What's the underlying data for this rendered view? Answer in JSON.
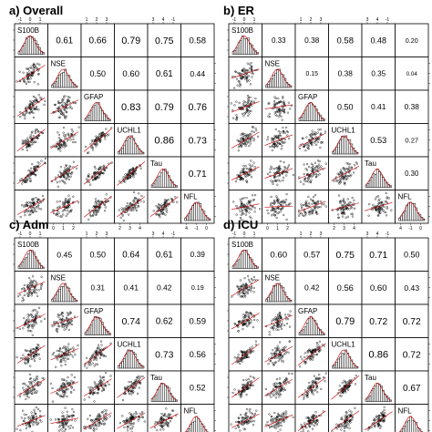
{
  "chart_data": [
    {
      "type": "scatter_matrix",
      "title": "a) Overall",
      "variables": [
        "S100B",
        "NSE",
        "GFAP",
        "UCHL1",
        "Tau",
        "NFL"
      ],
      "correlations": [
        [
          null,
          0.61,
          0.66,
          0.79,
          0.75,
          0.58
        ],
        [
          null,
          null,
          0.5,
          0.6,
          0.61,
          0.44
        ],
        [
          null,
          null,
          null,
          0.83,
          0.79,
          0.76
        ],
        [
          null,
          null,
          null,
          null,
          0.86,
          0.73
        ],
        [
          null,
          null,
          null,
          null,
          null,
          0.71
        ],
        [
          null,
          null,
          null,
          null,
          null,
          null
        ]
      ],
      "labels": [
        [
          null,
          "0.61",
          "0.66",
          "0.79",
          "0.75",
          "0.58"
        ],
        [
          null,
          null,
          "0.50",
          "0.60",
          "0.61",
          "0.44"
        ],
        [
          null,
          null,
          null,
          "0.83",
          "0.79",
          "0.76"
        ],
        [
          null,
          null,
          null,
          null,
          "0.86",
          "0.73"
        ],
        [
          null,
          null,
          null,
          null,
          null,
          "0.71"
        ],
        [
          null,
          null,
          null,
          null,
          null,
          null
        ]
      ]
    },
    {
      "type": "scatter_matrix",
      "title": "b) ER",
      "variables": [
        "S100B",
        "NSE",
        "GFAP",
        "UCHL1",
        "Tau",
        "NFL"
      ],
      "correlations": [
        [
          null,
          0.33,
          0.38,
          0.58,
          0.48,
          0.2
        ],
        [
          null,
          null,
          0.15,
          0.38,
          0.35,
          0.04
        ],
        [
          null,
          null,
          null,
          0.5,
          0.41,
          0.38
        ],
        [
          null,
          null,
          null,
          null,
          0.53,
          0.27
        ],
        [
          null,
          null,
          null,
          null,
          null,
          0.3
        ],
        [
          null,
          null,
          null,
          null,
          null,
          null
        ]
      ],
      "labels": [
        [
          null,
          "0.33",
          "0.38",
          "0.58",
          "0.48",
          "0.20"
        ],
        [
          null,
          null,
          "0.15",
          "0.38",
          "0.35",
          "0.04"
        ],
        [
          null,
          null,
          null,
          "0.50",
          "0.41",
          "0.38"
        ],
        [
          null,
          null,
          null,
          null,
          "0.53",
          "0.27"
        ],
        [
          null,
          null,
          null,
          null,
          null,
          "0.30"
        ],
        [
          null,
          null,
          null,
          null,
          null,
          null
        ]
      ]
    },
    {
      "type": "scatter_matrix",
      "title": "c) Adm",
      "variables": [
        "S100B",
        "NSE",
        "GFAP",
        "UCHL1",
        "Tau",
        "NFL"
      ],
      "correlations": [
        [
          null,
          0.45,
          0.5,
          0.64,
          0.61,
          0.39
        ],
        [
          null,
          null,
          0.31,
          0.41,
          0.42,
          0.19
        ],
        [
          null,
          null,
          null,
          0.74,
          0.62,
          0.59
        ],
        [
          null,
          null,
          null,
          null,
          0.73,
          0.56
        ],
        [
          null,
          null,
          null,
          null,
          null,
          0.52
        ],
        [
          null,
          null,
          null,
          null,
          null,
          null
        ]
      ],
      "labels": [
        [
          null,
          "0.45",
          "0.50",
          "0.64",
          "0.61",
          "0.39"
        ],
        [
          null,
          null,
          "0.31",
          "0.41",
          "0.42",
          "0.19"
        ],
        [
          null,
          null,
          null,
          "0.74",
          "0.62",
          "0.59"
        ],
        [
          null,
          null,
          null,
          null,
          "0.73",
          "0.56"
        ],
        [
          null,
          null,
          null,
          null,
          null,
          "0.52"
        ],
        [
          null,
          null,
          null,
          null,
          null,
          null
        ]
      ]
    },
    {
      "type": "scatter_matrix",
      "title": "d) ICU",
      "variables": [
        "S100B",
        "NSE",
        "GFAP",
        "UCHL1",
        "Tau",
        "NFL"
      ],
      "correlations": [
        [
          null,
          0.6,
          0.57,
          0.75,
          0.71,
          0.5
        ],
        [
          null,
          null,
          0.42,
          0.56,
          0.6,
          0.43
        ],
        [
          null,
          null,
          null,
          0.79,
          0.72,
          0.72
        ],
        [
          null,
          null,
          null,
          null,
          0.86,
          0.72
        ],
        [
          null,
          null,
          null,
          null,
          null,
          0.67
        ],
        [
          null,
          null,
          null,
          null,
          null,
          null
        ]
      ],
      "labels": [
        [
          null,
          "0.60",
          "0.57",
          "0.75",
          "0.71",
          "0.50"
        ],
        [
          null,
          null,
          "0.42",
          "0.56",
          "0.60",
          "0.43"
        ],
        [
          null,
          null,
          null,
          "0.79",
          "0.72",
          "0.72"
        ],
        [
          null,
          null,
          null,
          null,
          "0.86",
          "0.72"
        ],
        [
          null,
          null,
          null,
          null,
          null,
          "0.67"
        ],
        [
          null,
          null,
          null,
          null,
          null,
          null
        ]
      ]
    }
  ],
  "display_labels": [
    [
      "S100B",
      "NSE",
      "GFAP",
      "UCHL1",
      "Tau",
      "NFL"
    ],
    [
      "S100B",
      "NSE",
      "GFAP",
      "UCHL1",
      "Tau",
      "NFL"
    ],
    [
      "S100B",
      "NSE",
      "GFAP",
      "UCHL1",
      "Tau",
      "NFL"
    ],
    [
      "S100B",
      "NSE",
      "GFAP",
      "UCHL1",
      "Tau",
      "NFL"
    ]
  ],
  "tick_labels": [
    "-1",
    "0",
    "1",
    "2",
    "3",
    "4"
  ],
  "colors": {
    "points": "#000000",
    "fit_line": "#cc0000",
    "histogram_fill": "#808080",
    "frame": "#000000"
  }
}
